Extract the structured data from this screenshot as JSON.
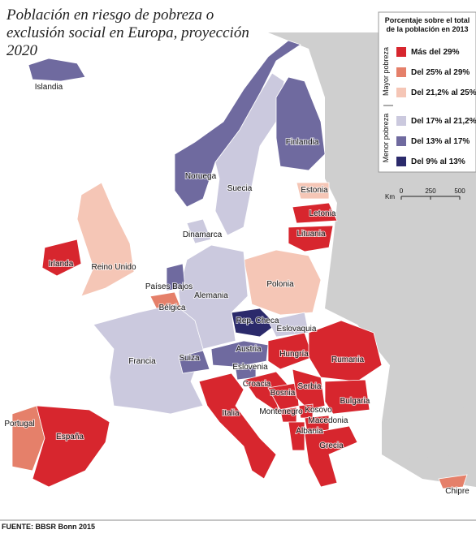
{
  "title": "Población en riesgo de pobreza o exclusión social en Europa, proyección 2020",
  "legend": {
    "title": "Porcentaje sobre el total de la población en 2013",
    "groups": [
      "Mayor pobreza",
      "Menor pobreza"
    ],
    "items": [
      {
        "label": "Más del 29%",
        "color": "#d7262e"
      },
      {
        "label": "Del 25% al 29%",
        "color": "#e5806a"
      },
      {
        "label": "Del 21,2% al 25%",
        "color": "#f5c6b6"
      },
      {
        "label": "Del 17% al 21,2%",
        "color": "#cbc9de"
      },
      {
        "label": "Del 13% al 17%",
        "color": "#6f6a9f"
      },
      {
        "label": "Del 9% al 13%",
        "color": "#2b2a6b"
      }
    ]
  },
  "scale": {
    "unit": "Km",
    "ticks": [
      0,
      250,
      500
    ]
  },
  "countries": [
    {
      "label": "Islandia",
      "color": "#6f6a9f"
    },
    {
      "label": "Noruega",
      "color": "#6f6a9f"
    },
    {
      "label": "Suecia",
      "color": "#cbc9de"
    },
    {
      "label": "Finlandia",
      "color": "#6f6a9f"
    },
    {
      "label": "Estonia",
      "color": "#f5c6b6"
    },
    {
      "label": "Letonia",
      "color": "#d7262e"
    },
    {
      "label": "Lituania",
      "color": "#d7262e"
    },
    {
      "label": "Dinamarca",
      "color": "#cbc9de"
    },
    {
      "label": "Irlanda",
      "color": "#d7262e"
    },
    {
      "label": "Reino Unido",
      "color": "#f5c6b6"
    },
    {
      "label": "Polonia",
      "color": "#f5c6b6"
    },
    {
      "label": "Alemania",
      "color": "#cbc9de"
    },
    {
      "label": "Países Bajos",
      "color": "#6f6a9f"
    },
    {
      "label": "Bélgica",
      "color": "#e5806a"
    },
    {
      "label": "Francia",
      "color": "#cbc9de"
    },
    {
      "label": "Suiza",
      "color": "#6f6a9f"
    },
    {
      "label": "Austria",
      "color": "#6f6a9f"
    },
    {
      "label": "Rep. Checa",
      "color": "#2b2a6b"
    },
    {
      "label": "Eslovaquia",
      "color": "#cbc9de"
    },
    {
      "label": "Hungría",
      "color": "#d7262e"
    },
    {
      "label": "Rumania",
      "color": "#d7262e"
    },
    {
      "label": "Eslovenia",
      "color": "#6f6a9f"
    },
    {
      "label": "Croacia",
      "color": "#d7262e"
    },
    {
      "label": "Bosnia",
      "color": "#d7262e"
    },
    {
      "label": "Serbia",
      "color": "#d7262e"
    },
    {
      "label": "Bulgaria",
      "color": "#d7262e"
    },
    {
      "label": "Montenegro",
      "color": "#d7262e"
    },
    {
      "label": "Kosovo",
      "color": "#d7262e"
    },
    {
      "label": "Macedonia",
      "color": "#d7262e"
    },
    {
      "label": "Albania",
      "color": "#d7262e"
    },
    {
      "label": "Grecia",
      "color": "#d7262e"
    },
    {
      "label": "Italia",
      "color": "#d7262e"
    },
    {
      "label": "Portugal",
      "color": "#e5806a"
    },
    {
      "label": "España",
      "color": "#d7262e"
    },
    {
      "label": "Chipre",
      "color": "#e5806a"
    }
  ],
  "source": "FUENTE: BBSR Bonn 2015"
}
